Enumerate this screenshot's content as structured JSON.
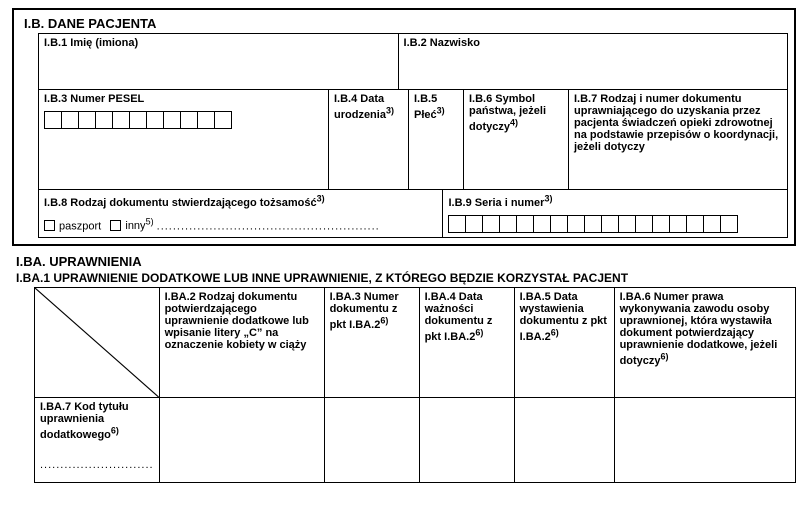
{
  "ib": {
    "title": "I.B. DANE PACJENTA",
    "b1": "I.B.1 Imię (imiona)",
    "b2": "I.B.2 Nazwisko",
    "b3": "I.B.3 Numer PESEL",
    "b4": "I.B.4 Data urodzenia",
    "b4_sup": "3)",
    "b5": "I.B.5 Płeć",
    "b5_sup": "3)",
    "b6": "I.B.6 Symbol państwa, jeżeli dotyczy",
    "b6_sup": "4)",
    "b7": "I.B.7 Rodzaj i numer dokumentu uprawniającego do uzyskania przez pacjenta świadczeń opieki zdrowotnej na podstawie przepisów o koordynacji, jeżeli dotyczy",
    "b8": "I.B.8 Rodzaj dokumentu stwierdzającego tożsamość",
    "b8_sup": "3)",
    "b8_opt_passport": "paszport",
    "b8_opt_other": "inny",
    "b8_other_sup": "5)",
    "b8_dots": ".......................................................",
    "b9": "I.B.9 Seria i numer",
    "b9_sup": "3)"
  },
  "iba": {
    "title": "I.BA. UPRAWNIENIA",
    "sub1": "I.BA.1 UPRAWNIENIE DODATKOWE LUB INNE UPRAWNIENIE, Z KTÓREGO BĘDZIE KORZYSTAŁ PACJENT",
    "ba2": "I.BA.2 Rodzaj dokumentu potwierdzającego uprawnienie dodatkowe lub wpisanie litery „C” na oznaczenie kobiety w ciąży",
    "ba3": "I.BA.3 Numer dokumentu z pkt I.BA.2",
    "ba3_sup": "6)",
    "ba4": "I.BA.4 Data ważności dokumentu z pkt I.BA.2",
    "ba4_sup": "6)",
    "ba5": "I.BA.5 Data wystawienia dokumentu z pkt I.BA.2",
    "ba5_sup": "6)",
    "ba6": "I.BA.6 Numer prawa wykonywania zawodu osoby uprawnionej, która wystawiła dokument potwierdzający uprawnienie dodatkowe, jeżeli dotyczy",
    "ba6_sup": "6)",
    "ba7": "I.BA.7 Kod tytułu uprawnienia dodatkowego",
    "ba7_sup": "6)",
    "ba7_dots": "............................"
  },
  "style": {
    "pesel_cells": 11,
    "serial_cells": 17
  }
}
